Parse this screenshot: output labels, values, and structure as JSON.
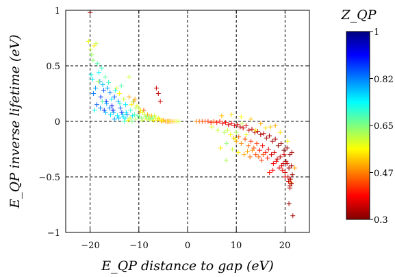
{
  "chart_data": {
    "type": "scatter",
    "marker": "+",
    "colormap": "jet",
    "xlabel": "E_QP distance to gap (eV)",
    "ylabel": "E_QP inverse lifetime (eV)",
    "xlim": [
      -25,
      25
    ],
    "ylim": [
      -1,
      1
    ],
    "xticks": [
      "−20",
      "−10",
      "0",
      "10",
      "20"
    ],
    "yticks": [
      "1",
      "0.5",
      "0",
      "−0.5",
      "−1"
    ],
    "grid": "dashed",
    "colorbar": {
      "title": "Z_QP",
      "range": [
        0.3,
        1
      ],
      "ticks": [
        "1",
        "0.82",
        "0.65",
        "0.47",
        "0.3"
      ]
    },
    "series": [
      {
        "x": [
          -20.0,
          -20.3,
          -19.9,
          -19.7,
          -19.4,
          -19.8,
          -19.2,
          -18.8,
          -19.5,
          -18.5,
          -18.2,
          -18.9,
          -17.6,
          -19.3,
          -18.0,
          -17.4,
          -17.8,
          -16.9,
          -17.2,
          -16.4,
          -16.7,
          -15.9,
          -16.2,
          -15.5,
          -15.0,
          -14.6,
          -15.3,
          -14.2,
          -13.8,
          -14.0,
          -13.5,
          -13.1,
          -12.7,
          -12.4,
          -12.0,
          -11.7,
          -11.3,
          -11.0,
          -10.6,
          -10.2,
          -9.8,
          -9.4,
          -9.0,
          -8.6,
          -8.2,
          -7.8,
          -7.4,
          -7.0,
          -6.6,
          -6.2,
          -5.8,
          -5.4,
          -5.0,
          -4.6,
          -4.2,
          -3.8,
          -3.4,
          -3.0,
          -2.6,
          -2.2,
          -1.8,
          -18.6,
          -17.1,
          -16.0,
          -15.2,
          -14.4,
          -13.3,
          -12.8,
          -11.5,
          -10.8,
          -10.0,
          -9.2,
          -8.4,
          -7.6,
          -6.8,
          -6.0,
          -5.2,
          -12.0,
          -14.8,
          -13.6,
          -11.2,
          -10.4,
          -9.6,
          -8.8,
          -8.0,
          -7.2,
          -15.6,
          -16.6,
          -17.9,
          -12.6,
          -13.9,
          -10.9,
          -9.9,
          -11.8,
          -10.6,
          -8.5,
          -7.0,
          -6.4,
          -6.0,
          -5.6,
          -12.2,
          -13.2,
          -14.1,
          -15.0,
          -9.3,
          -8.1,
          -4.0,
          -16.8,
          -17.5,
          -18.3,
          -19.1,
          -13.0,
          -11.4,
          -15.8
        ],
        "y": [
          0.98,
          0.72,
          0.65,
          0.6,
          0.55,
          0.42,
          0.68,
          0.7,
          0.38,
          0.52,
          0.44,
          0.3,
          0.48,
          0.25,
          0.36,
          0.33,
          0.22,
          0.4,
          0.28,
          0.3,
          0.18,
          0.26,
          0.35,
          0.14,
          0.22,
          0.3,
          0.1,
          0.18,
          0.12,
          0.25,
          0.08,
          0.2,
          0.15,
          0.06,
          0.22,
          0.1,
          0.05,
          0.18,
          0.12,
          0.05,
          0.08,
          0.03,
          0.1,
          0.04,
          0.06,
          0.02,
          0.05,
          0.01,
          0.03,
          0.01,
          0.02,
          0.0,
          0.01,
          0.0,
          0.0,
          0.0,
          0.0,
          0.0,
          0.0,
          0.0,
          0.0,
          0.15,
          0.1,
          0.12,
          0.08,
          0.05,
          0.06,
          0.03,
          0.15,
          0.2,
          0.12,
          0.08,
          0.04,
          0.02,
          0.05,
          0.03,
          0.01,
          0.4,
          0.28,
          0.32,
          0.18,
          0.14,
          0.1,
          0.06,
          0.04,
          0.03,
          0.2,
          0.16,
          0.12,
          0.08,
          0.16,
          0.06,
          0.04,
          0.03,
          0.02,
          0.02,
          0.01,
          0.3,
          0.25,
          0.18,
          0.01,
          0.04,
          0.03,
          0.02,
          0.01,
          0.02,
          0.0,
          0.08,
          0.18,
          0.36,
          0.1,
          0.0,
          0.0,
          0.06
        ],
        "z": [
          0.95,
          0.72,
          0.7,
          0.67,
          0.66,
          0.58,
          0.75,
          0.7,
          0.55,
          0.62,
          0.56,
          0.5,
          0.6,
          0.47,
          0.5,
          0.52,
          0.42,
          0.62,
          0.45,
          0.5,
          0.4,
          0.48,
          0.6,
          0.38,
          0.45,
          0.72,
          0.4,
          0.5,
          0.45,
          0.74,
          0.42,
          0.7,
          0.55,
          0.48,
          0.8,
          0.6,
          0.55,
          0.85,
          0.68,
          0.62,
          0.78,
          0.66,
          0.85,
          0.7,
          0.8,
          0.7,
          0.78,
          0.72,
          0.74,
          0.76,
          0.76,
          0.8,
          0.82,
          0.8,
          0.82,
          0.82,
          0.8,
          0.78,
          0.78,
          0.72,
          0.7,
          0.45,
          0.42,
          0.48,
          0.5,
          0.55,
          0.52,
          0.55,
          0.75,
          0.8,
          0.7,
          0.72,
          0.6,
          0.66,
          0.7,
          0.72,
          0.74,
          0.7,
          0.58,
          0.62,
          0.68,
          0.72,
          0.75,
          0.7,
          0.66,
          0.64,
          0.55,
          0.5,
          0.48,
          0.55,
          0.6,
          0.62,
          0.66,
          0.7,
          0.68,
          0.72,
          0.74,
          0.95,
          0.96,
          0.94,
          0.74,
          0.55,
          0.52,
          0.5,
          0.7,
          0.68,
          0.75,
          0.52,
          0.62,
          0.68,
          0.56,
          0.6,
          0.64,
          0.54
        ]
      },
      {
        "x": [
          1.8,
          2.4,
          3.0,
          3.6,
          4.2,
          4.8,
          5.4,
          6.0,
          6.6,
          7.2,
          7.8,
          8.4,
          9.0,
          9.6,
          10.2,
          10.8,
          11.4,
          12.0,
          12.6,
          13.2,
          13.8,
          14.4,
          15.0,
          15.6,
          16.2,
          16.8,
          17.4,
          18.0,
          18.6,
          19.2,
          19.8,
          20.4,
          21.0,
          21.4,
          5.0,
          6.2,
          7.5,
          8.8,
          9.5,
          10.0,
          10.5,
          11.0,
          11.8,
          12.5,
          13.0,
          13.6,
          14.2,
          14.8,
          15.4,
          16.0,
          16.6,
          17.2,
          17.8,
          18.4,
          19.0,
          19.6,
          20.2,
          20.8,
          21.3,
          8.0,
          9.2,
          10.4,
          11.6,
          12.8,
          14.0,
          15.2,
          16.4,
          17.6,
          18.8,
          20.0,
          20.6,
          21.1,
          21.5,
          7.0,
          9.0,
          11.0,
          13.0,
          15.0,
          17.0,
          19.0,
          20.5,
          21.2,
          10.0,
          12.0,
          14.0,
          16.0,
          18.0,
          19.5,
          20.0,
          21.0,
          20.8,
          21.0,
          20.4,
          19.8,
          21.3,
          8.2,
          12.3,
          15.5,
          18.2,
          16.8,
          17.5,
          19.3,
          20.7,
          21.0,
          14.6,
          13.3,
          22.0,
          21.6,
          11.2,
          9.8,
          6.8,
          7.9
        ],
        "y": [
          0.0,
          0.0,
          0.0,
          0.0,
          0.0,
          -0.01,
          0.0,
          -0.01,
          0.0,
          -0.02,
          -0.01,
          -0.03,
          -0.02,
          -0.04,
          -0.03,
          -0.05,
          -0.06,
          -0.04,
          -0.08,
          -0.07,
          -0.1,
          -0.09,
          -0.12,
          -0.11,
          -0.15,
          -0.13,
          -0.18,
          -0.16,
          -0.22,
          -0.2,
          -0.26,
          -0.24,
          -0.3,
          -0.28,
          -0.05,
          -0.08,
          -0.1,
          -0.12,
          -0.15,
          -0.18,
          -0.14,
          -0.2,
          -0.16,
          -0.22,
          -0.18,
          -0.24,
          -0.2,
          -0.26,
          -0.22,
          -0.28,
          -0.25,
          -0.3,
          -0.28,
          -0.34,
          -0.32,
          -0.38,
          -0.36,
          -0.42,
          -0.4,
          -0.2,
          -0.25,
          -0.28,
          -0.3,
          -0.32,
          -0.3,
          -0.35,
          -0.33,
          -0.38,
          -0.42,
          -0.46,
          -0.5,
          -0.52,
          -0.48,
          0.05,
          0.06,
          0.04,
          0.02,
          -0.02,
          -0.05,
          -0.1,
          -0.18,
          -0.55,
          -0.1,
          -0.12,
          -0.08,
          -0.06,
          -0.04,
          -0.44,
          -0.5,
          -0.58,
          -0.74,
          -0.6,
          -0.38,
          -0.3,
          -0.56,
          -0.08,
          -0.27,
          -0.3,
          -0.36,
          -0.46,
          -0.44,
          -0.4,
          -0.54,
          -0.52,
          -0.32,
          -0.26,
          -0.42,
          -0.85,
          -0.02,
          -0.16,
          -0.24,
          -0.35
        ],
        "z": [
          0.82,
          0.84,
          0.86,
          0.86,
          0.88,
          0.88,
          0.86,
          0.9,
          0.9,
          0.92,
          0.9,
          0.94,
          0.92,
          0.95,
          0.94,
          0.96,
          0.95,
          0.94,
          0.96,
          0.95,
          0.97,
          0.96,
          0.97,
          0.96,
          0.98,
          0.97,
          0.98,
          0.97,
          0.99,
          0.98,
          0.99,
          0.98,
          0.99,
          0.97,
          0.72,
          0.7,
          0.68,
          0.74,
          0.78,
          0.8,
          0.84,
          0.82,
          0.86,
          0.85,
          0.88,
          0.86,
          0.88,
          0.9,
          0.92,
          0.9,
          0.93,
          0.94,
          0.94,
          0.95,
          0.96,
          0.95,
          0.96,
          0.97,
          0.98,
          0.66,
          0.7,
          0.75,
          0.8,
          0.84,
          0.86,
          0.88,
          0.9,
          0.92,
          0.94,
          0.95,
          0.96,
          0.97,
          0.98,
          0.78,
          0.76,
          0.74,
          0.78,
          0.8,
          0.78,
          0.76,
          0.74,
          0.82,
          0.68,
          0.72,
          0.75,
          0.76,
          0.8,
          0.92,
          0.94,
          0.96,
          0.98,
          0.97,
          0.95,
          0.94,
          0.98,
          0.7,
          0.8,
          0.86,
          0.92,
          0.9,
          0.91,
          0.93,
          0.95,
          0.96,
          0.85,
          0.82,
          0.8,
          0.97,
          0.7,
          0.72,
          0.75,
          0.68
        ]
      }
    ]
  }
}
